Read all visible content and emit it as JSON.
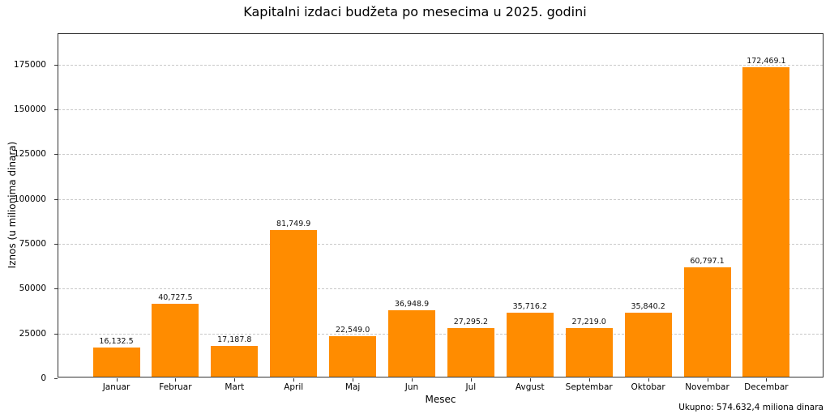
{
  "chart_data": {
    "type": "bar",
    "title": "Kapitalni izdaci budžeta po mesecima u 2025. godini",
    "xlabel": "Mesec",
    "ylabel": "Iznos (u milionima dinara)",
    "categories": [
      "Januar",
      "Februar",
      "Mart",
      "April",
      "Maj",
      "Jun",
      "Jul",
      "Avgust",
      "Septembar",
      "Oktobar",
      "Novembar",
      "Decembar"
    ],
    "values": [
      16132.5,
      40727.5,
      17187.8,
      81749.9,
      22549.0,
      36948.9,
      27295.2,
      35716.2,
      27219.0,
      35840.2,
      60797.1,
      172469.1
    ],
    "value_labels": [
      "16,132.5",
      "40,727.5",
      "17,187.8",
      "81,749.9",
      "22,549.0",
      "36,948.9",
      "27,295.2",
      "35,716.2",
      "27,219.0",
      "35,840.2",
      "60,797.1",
      "172,469.1"
    ],
    "yticks": [
      0,
      25000,
      50000,
      75000,
      100000,
      125000,
      150000,
      175000
    ],
    "ylim": [
      0,
      192000
    ],
    "grid": "y dashed",
    "bar_color": "#ff8c00",
    "annotation": "Ukupno: 574.632,4 miliona dinara"
  }
}
